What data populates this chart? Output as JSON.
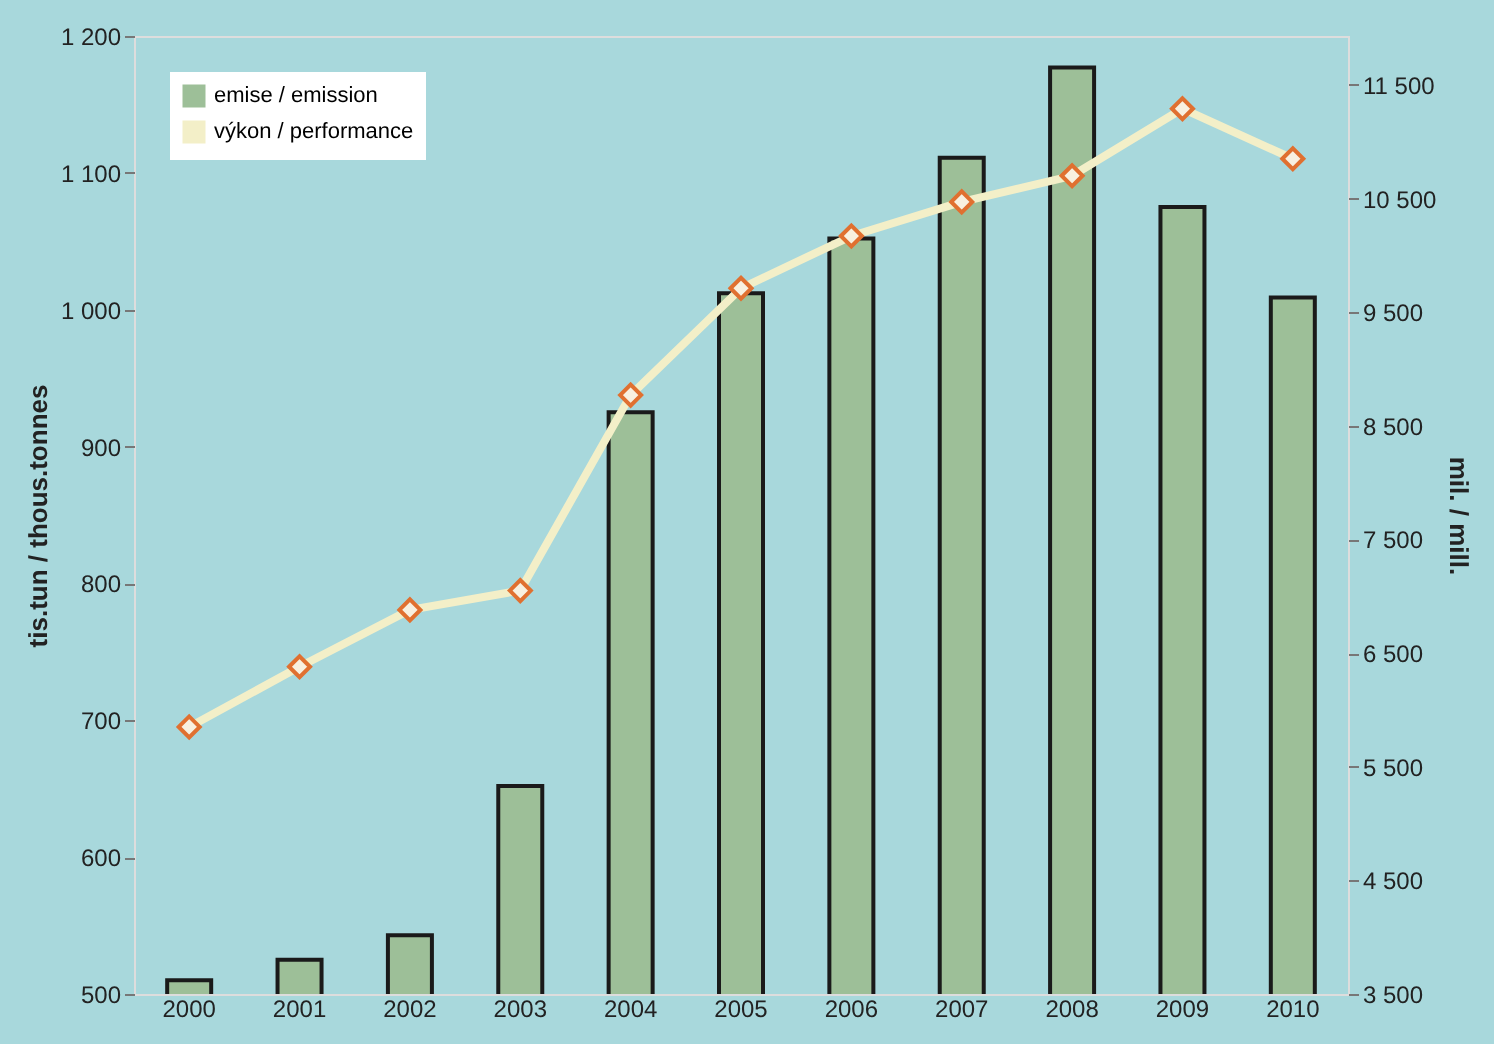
{
  "chart_data": {
    "type": "bar",
    "xlabel": null,
    "ylabel": "tis.tun / thous.tonnes",
    "y2label": "mil. / mill.",
    "categories": [
      "2000",
      "2001",
      "2002",
      "2003",
      "2004",
      "2005",
      "2006",
      "2007",
      "2008",
      "2009",
      "2010"
    ],
    "series": [
      {
        "name": "emise / emission",
        "color": "#9dbf98",
        "values": [
          510,
          525,
          543,
          652,
          925,
          1012,
          1052,
          1111,
          1177,
          1075,
          1009
        ]
      },
      {
        "name": "výkon / performance",
        "type": "line",
        "axis": "y2",
        "color": "#f3efc8",
        "marker": "diamond",
        "values": [
          5850,
          6380,
          6880,
          7050,
          8770,
          9710,
          10170,
          10470,
          10700,
          11290,
          10850
        ]
      }
    ],
    "ylim": [
      500,
      1200
    ],
    "yticks": [
      {
        "value": 500,
        "label": "500"
      },
      {
        "value": 600,
        "label": "600"
      },
      {
        "value": 700,
        "label": "700"
      },
      {
        "value": 800,
        "label": "800"
      },
      {
        "value": 900,
        "label": "900"
      },
      {
        "value": 1000,
        "label": "1 000"
      },
      {
        "value": 1100,
        "label": "1 100"
      },
      {
        "value": 1200,
        "label": "1 200"
      }
    ],
    "y2lim": [
      3500,
      11930
    ],
    "y2ticks": [
      {
        "value": 3500,
        "label": "3 500"
      },
      {
        "value": 4500,
        "label": "4 500"
      },
      {
        "value": 5500,
        "label": "5 500"
      },
      {
        "value": 6500,
        "label": "6 500"
      },
      {
        "value": 7500,
        "label": "7 500"
      },
      {
        "value": 8500,
        "label": "8 500"
      },
      {
        "value": 9500,
        "label": "9 500"
      },
      {
        "value": 10500,
        "label": "10 500"
      },
      {
        "value": 11500,
        "label": "11 500"
      }
    ],
    "grid": false,
    "legend": "top left"
  }
}
